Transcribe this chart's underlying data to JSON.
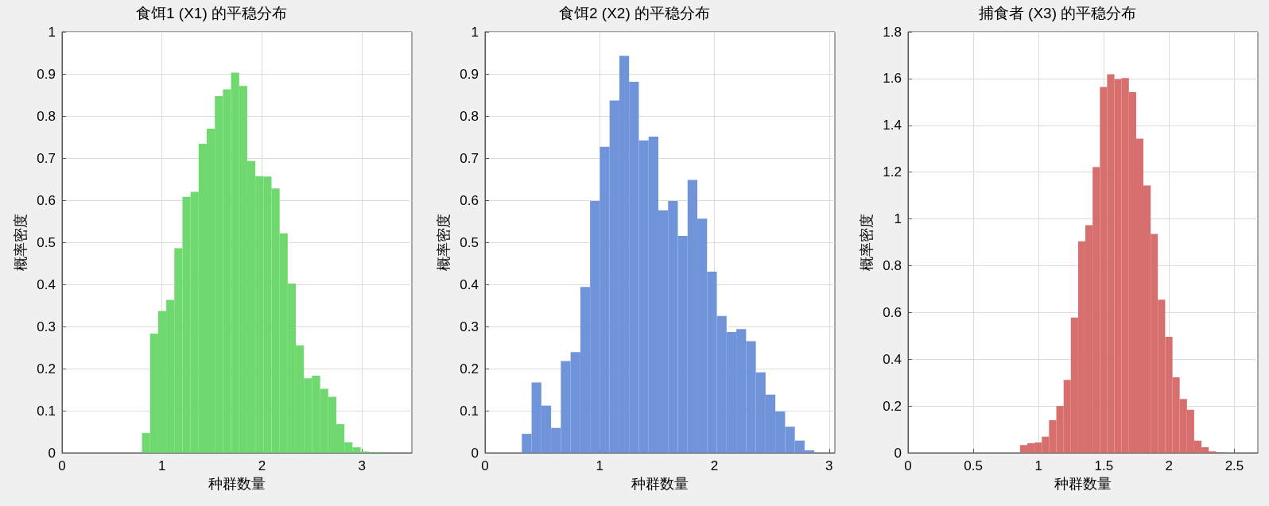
{
  "chart_data": [
    {
      "type": "histogram",
      "title": "食饵1 (X1) 的平稳分布",
      "xlabel": "种群数量",
      "ylabel": "概率密度",
      "color": "#6fd86f",
      "grid": true,
      "xlim": [
        0,
        3.5
      ],
      "xticks": [
        0,
        1,
        2,
        3
      ],
      "ylim": [
        0,
        1
      ],
      "yticks": [
        0,
        0.1,
        0.2,
        0.3,
        0.4,
        0.5,
        0.6,
        0.7,
        0.8,
        0.9,
        1
      ],
      "bins": [
        0.8,
        0.881,
        0.962,
        1.043,
        1.124,
        1.205,
        1.286,
        1.367,
        1.448,
        1.529,
        1.61,
        1.691,
        1.772,
        1.853,
        1.934,
        2.015,
        2.096,
        2.177,
        2.258,
        2.339,
        2.42,
        2.501,
        2.582,
        2.663,
        2.744,
        2.825,
        2.906,
        2.987,
        3.068,
        3.149,
        3.23
      ],
      "values": [
        0.047,
        0.283,
        0.337,
        0.363,
        0.486,
        0.608,
        0.62,
        0.734,
        0.77,
        0.847,
        0.863,
        0.903,
        0.871,
        0.693,
        0.657,
        0.656,
        0.628,
        0.521,
        0.402,
        0.255,
        0.177,
        0.183,
        0.152,
        0.133,
        0.068,
        0.025,
        0.013,
        0.003,
        0.001,
        0.002
      ]
    },
    {
      "type": "histogram",
      "title": "食饵2 (X2) 的平稳分布",
      "xlabel": "种群数量",
      "ylabel": "概率密度",
      "color": "#6f94da",
      "grid": true,
      "xlim": [
        0,
        3.05
      ],
      "xticks": [
        0,
        1,
        2,
        3
      ],
      "ylim": [
        0,
        1
      ],
      "yticks": [
        0,
        0.1,
        0.2,
        0.3,
        0.4,
        0.5,
        0.6,
        0.7,
        0.8,
        0.9,
        1
      ],
      "bins": [
        0.321,
        0.406,
        0.491,
        0.576,
        0.661,
        0.746,
        0.831,
        0.916,
        1.001,
        1.086,
        1.171,
        1.256,
        1.341,
        1.426,
        1.511,
        1.596,
        1.681,
        1.766,
        1.851,
        1.936,
        2.021,
        2.106,
        2.191,
        2.276,
        2.361,
        2.446,
        2.531,
        2.616,
        2.701,
        2.786,
        2.871
      ],
      "values": [
        0.045,
        0.167,
        0.112,
        0.059,
        0.218,
        0.239,
        0.394,
        0.598,
        0.727,
        0.837,
        0.943,
        0.881,
        0.742,
        0.751,
        0.576,
        0.598,
        0.515,
        0.648,
        0.556,
        0.43,
        0.325,
        0.287,
        0.294,
        0.265,
        0.191,
        0.138,
        0.098,
        0.062,
        0.029,
        0.006
      ]
    },
    {
      "type": "histogram",
      "title": "捕食者 (X3) 的平稳分布",
      "xlabel": "种群数量",
      "ylabel": "概率密度",
      "color": "#d86f6f",
      "grid": true,
      "xlim": [
        0,
        2.68
      ],
      "xticks": [
        0,
        0.5,
        1,
        1.5,
        2,
        2.5
      ],
      "ylim": [
        0,
        1.8
      ],
      "yticks": [
        0,
        0.2,
        0.4,
        0.6,
        0.8,
        1,
        1.2,
        1.4,
        1.6,
        1.8
      ],
      "bins": [
        0.858,
        0.914,
        0.969,
        1.025,
        1.08,
        1.136,
        1.192,
        1.247,
        1.303,
        1.358,
        1.414,
        1.47,
        1.525,
        1.581,
        1.636,
        1.692,
        1.748,
        1.803,
        1.859,
        1.914,
        1.97,
        2.026,
        2.081,
        2.137,
        2.192,
        2.248,
        2.304,
        2.359,
        2.415
      ],
      "values": [
        0.033,
        0.041,
        0.044,
        0.069,
        0.139,
        0.2,
        0.312,
        0.578,
        0.904,
        0.973,
        1.222,
        1.564,
        1.618,
        1.598,
        1.602,
        1.542,
        1.343,
        1.143,
        0.936,
        0.655,
        0.496,
        0.323,
        0.23,
        0.184,
        0.052,
        0.024,
        0.006,
        0.002
      ]
    }
  ]
}
